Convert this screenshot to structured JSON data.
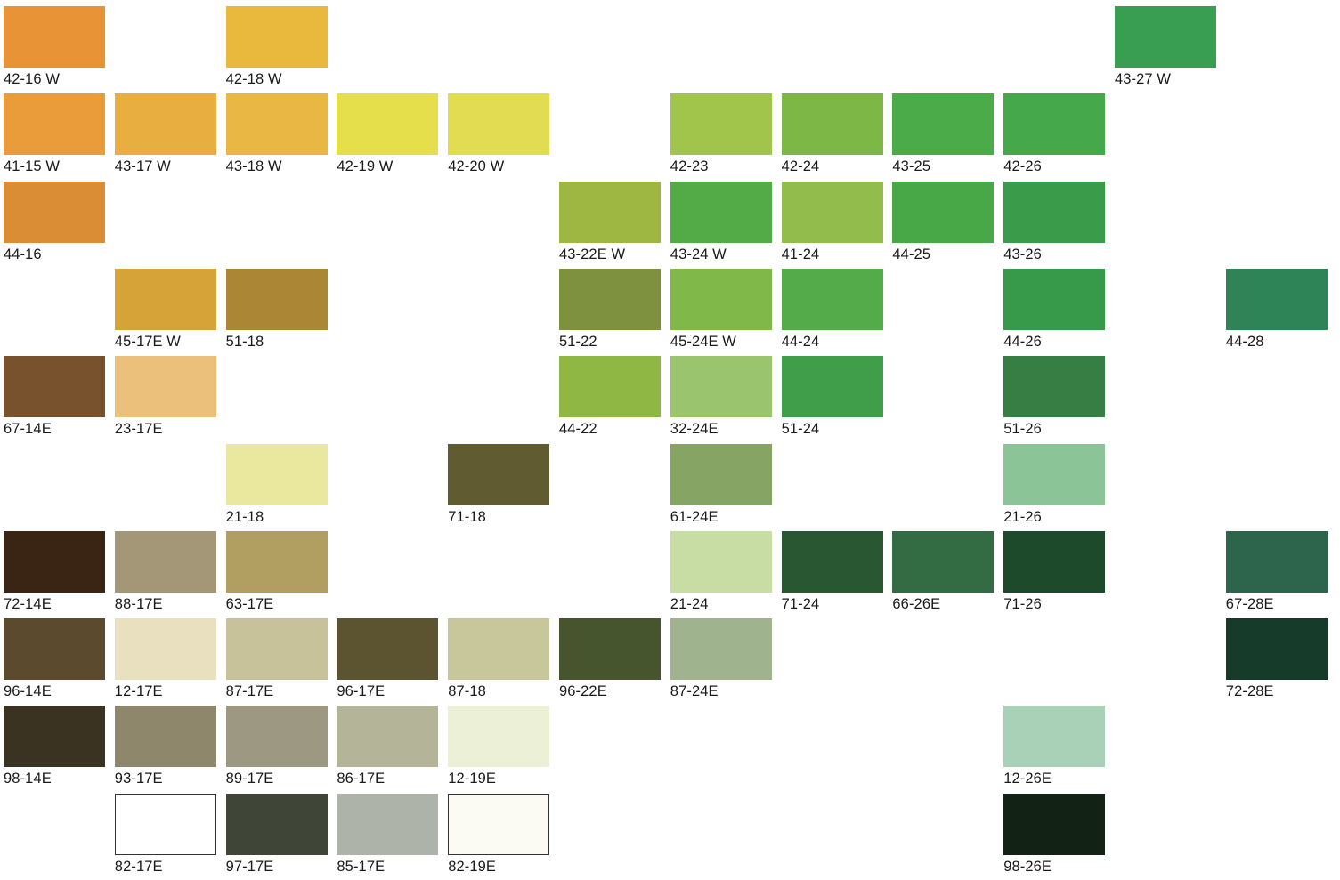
{
  "swatches": [
    {
      "code": "42-16 W",
      "hex": "#E89436",
      "col": 0,
      "row": 0
    },
    {
      "code": "42-18 W",
      "hex": "#E8B93D",
      "col": 2,
      "row": 0
    },
    {
      "code": "43-27 W",
      "hex": "#3A9E52",
      "col": 10,
      "row": 0
    },
    {
      "code": "41-15 W",
      "hex": "#EA9C3A",
      "col": 0,
      "row": 1
    },
    {
      "code": "43-17 W",
      "hex": "#E8AE3F",
      "col": 1,
      "row": 1
    },
    {
      "code": "43-18 W",
      "hex": "#E8B744",
      "col": 2,
      "row": 1
    },
    {
      "code": "42-19 W",
      "hex": "#E5DF4C",
      "col": 3,
      "row": 1
    },
    {
      "code": "42-20 W",
      "hex": "#E2DC52",
      "col": 4,
      "row": 1
    },
    {
      "code": "42-23",
      "hex": "#A1C44A",
      "col": 6,
      "row": 1
    },
    {
      "code": "42-24",
      "hex": "#7DB847",
      "col": 7,
      "row": 1
    },
    {
      "code": "43-25",
      "hex": "#4BAB48",
      "col": 8,
      "row": 1
    },
    {
      "code": "42-26",
      "hex": "#45A84B",
      "col": 9,
      "row": 1
    },
    {
      "code": "44-16",
      "hex": "#DA8D35",
      "col": 0,
      "row": 2
    },
    {
      "code": "43-22E W",
      "hex": "#9EB742",
      "col": 5,
      "row": 2
    },
    {
      "code": "43-24 W",
      "hex": "#53AB47",
      "col": 6,
      "row": 2
    },
    {
      "code": "41-24",
      "hex": "#92BD4C",
      "col": 7,
      "row": 2
    },
    {
      "code": "44-25",
      "hex": "#48A747",
      "col": 8,
      "row": 2
    },
    {
      "code": "43-26",
      "hex": "#3A9C4A",
      "col": 9,
      "row": 2
    },
    {
      "code": "45-17E W",
      "hex": "#D6A339",
      "col": 1,
      "row": 3
    },
    {
      "code": "51-18",
      "hex": "#AB8735",
      "col": 2,
      "row": 3
    },
    {
      "code": "51-22",
      "hex": "#7E913F",
      "col": 5,
      "row": 3
    },
    {
      "code": "45-24E W",
      "hex": "#80B84A",
      "col": 6,
      "row": 3
    },
    {
      "code": "44-24",
      "hex": "#53AB4A",
      "col": 7,
      "row": 3
    },
    {
      "code": "44-26",
      "hex": "#379A4A",
      "col": 9,
      "row": 3
    },
    {
      "code": "44-28",
      "hex": "#2E8456",
      "col": 11,
      "row": 3
    },
    {
      "code": "67-14E",
      "hex": "#78522C",
      "col": 0,
      "row": 4
    },
    {
      "code": "23-17E",
      "hex": "#EBC07B",
      "col": 1,
      "row": 4
    },
    {
      "code": "44-22",
      "hex": "#8EB843",
      "col": 5,
      "row": 4
    },
    {
      "code": "32-24E",
      "hex": "#9AC56E",
      "col": 6,
      "row": 4
    },
    {
      "code": "51-24",
      "hex": "#409E4A",
      "col": 7,
      "row": 4
    },
    {
      "code": "51-26",
      "hex": "#377E45",
      "col": 9,
      "row": 4
    },
    {
      "code": "21-18",
      "hex": "#EAE89E",
      "col": 2,
      "row": 5
    },
    {
      "code": "71-18",
      "hex": "#615B31",
      "col": 4,
      "row": 5
    },
    {
      "code": "61-24E",
      "hex": "#86A464",
      "col": 6,
      "row": 5
    },
    {
      "code": "21-26",
      "hex": "#8BC597",
      "col": 9,
      "row": 5
    },
    {
      "code": "72-14E",
      "hex": "#3A2414",
      "col": 0,
      "row": 6
    },
    {
      "code": "88-17E",
      "hex": "#A49777",
      "col": 1,
      "row": 6
    },
    {
      "code": "63-17E",
      "hex": "#B19F62",
      "col": 2,
      "row": 6
    },
    {
      "code": "21-24",
      "hex": "#C7DDA4",
      "col": 6,
      "row": 6
    },
    {
      "code": "71-24",
      "hex": "#285731",
      "col": 7,
      "row": 6
    },
    {
      "code": "66-26E",
      "hex": "#336B43",
      "col": 8,
      "row": 6
    },
    {
      "code": "71-26",
      "hex": "#1E4A2C",
      "col": 9,
      "row": 6
    },
    {
      "code": "67-28E",
      "hex": "#2C644C",
      "col": 11,
      "row": 6
    },
    {
      "code": "96-14E",
      "hex": "#5B4A2D",
      "col": 0,
      "row": 7
    },
    {
      "code": "12-17E",
      "hex": "#E9E0BF",
      "col": 1,
      "row": 7
    },
    {
      "code": "87-17E",
      "hex": "#C8C29B",
      "col": 2,
      "row": 7
    },
    {
      "code": "96-17E",
      "hex": "#5C5431",
      "col": 3,
      "row": 7
    },
    {
      "code": "87-18",
      "hex": "#C8C79B",
      "col": 4,
      "row": 7
    },
    {
      "code": "96-22E",
      "hex": "#47552E",
      "col": 5,
      "row": 7
    },
    {
      "code": "87-24E",
      "hex": "#9EB38E",
      "col": 6,
      "row": 7
    },
    {
      "code": "72-28E",
      "hex": "#163B2B",
      "col": 11,
      "row": 7
    },
    {
      "code": "98-14E",
      "hex": "#3A3322",
      "col": 0,
      "row": 8
    },
    {
      "code": "93-17E",
      "hex": "#8E876C",
      "col": 1,
      "row": 8
    },
    {
      "code": "89-17E",
      "hex": "#9D9882",
      "col": 2,
      "row": 8
    },
    {
      "code": "86-17E",
      "hex": "#B4B598",
      "col": 3,
      "row": 8
    },
    {
      "code": "12-19E",
      "hex": "#EBF0D7",
      "col": 4,
      "row": 8
    },
    {
      "code": "12-26E",
      "hex": "#A9D1B7",
      "col": 9,
      "row": 8
    },
    {
      "code": "82-17E",
      "hex": "#FFFFFF",
      "col": 1,
      "row": 9,
      "outlined": true
    },
    {
      "code": "97-17E",
      "hex": "#3F4537",
      "col": 2,
      "row": 9
    },
    {
      "code": "85-17E",
      "hex": "#ADB3A9",
      "col": 3,
      "row": 9
    },
    {
      "code": "82-19E",
      "hex": "#FBFBF3",
      "col": 4,
      "row": 9,
      "outlined": true
    },
    {
      "code": "98-26E",
      "hex": "#122215",
      "col": 9,
      "row": 9
    }
  ]
}
